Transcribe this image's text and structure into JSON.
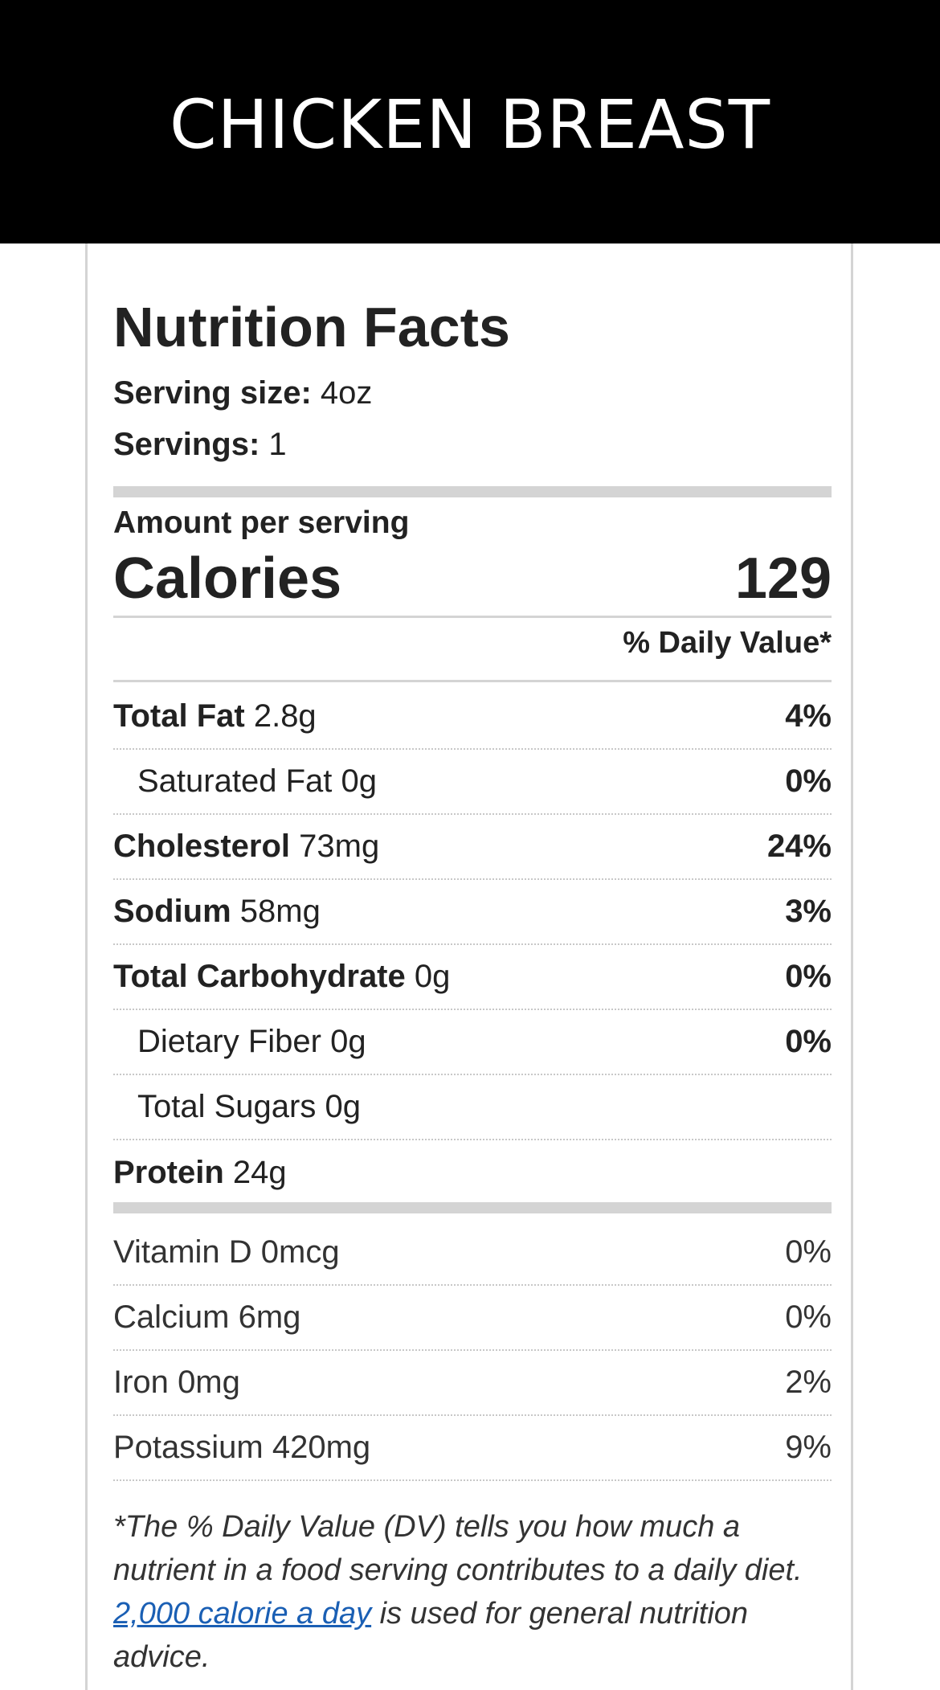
{
  "header": {
    "title": "CHICKEN BREAST"
  },
  "facts": {
    "title": "Nutrition Facts",
    "serving_size_label": "Serving size:",
    "serving_size_value": "4oz",
    "servings_label": "Servings:",
    "servings_value": "1",
    "amount_per_serving": "Amount per serving",
    "calories_label": "Calories",
    "calories_value": "129",
    "daily_value_header": "% Daily Value*"
  },
  "nutrients": [
    {
      "name": "Total Fat",
      "amount": "2.8g",
      "dv": "4%"
    },
    {
      "name": "Saturated Fat",
      "amount": "0g",
      "dv": "0%"
    },
    {
      "name": "Cholesterol",
      "amount": "73mg",
      "dv": "24%"
    },
    {
      "name": "Sodium",
      "amount": "58mg",
      "dv": "3%"
    },
    {
      "name": "Total Carbohydrate",
      "amount": "0g",
      "dv": "0%"
    },
    {
      "name": "Dietary Fiber",
      "amount": "0g",
      "dv": "0%"
    },
    {
      "name": "Total Sugars",
      "amount": "0g",
      "dv": ""
    },
    {
      "name": "Protein",
      "amount": "24g",
      "dv": ""
    }
  ],
  "vitamins": [
    {
      "name": "Vitamin D",
      "amount": "0mcg",
      "dv": "0%"
    },
    {
      "name": "Calcium",
      "amount": "6mg",
      "dv": "0%"
    },
    {
      "name": "Iron",
      "amount": "0mg",
      "dv": "2%"
    },
    {
      "name": "Potassium",
      "amount": "420mg",
      "dv": "9%"
    }
  ],
  "footnote": {
    "text_before": "*The % Daily Value (DV) tells you how much a nutrient in a food serving contributes to a daily diet.",
    "link": "2,000 calorie a day",
    "text_after": "is used for general nutrition advice."
  }
}
